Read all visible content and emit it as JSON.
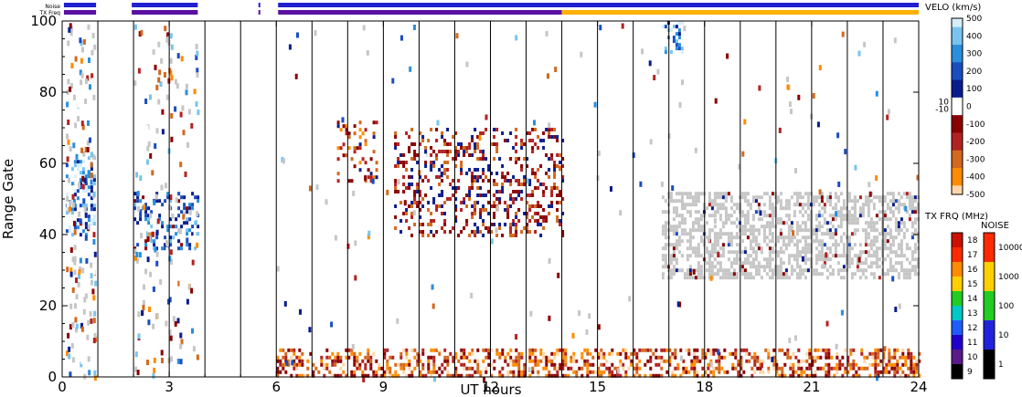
{
  "chart_data": {
    "type": "heatmap",
    "xlabel": "UT hours",
    "ylabel": "Range Gate",
    "xlim": [
      0,
      24
    ],
    "ylim": [
      0,
      100
    ],
    "x_ticks": [
      0,
      3,
      6,
      9,
      12,
      15,
      18,
      21,
      24
    ],
    "y_ticks": [
      0,
      20,
      40,
      60,
      80,
      100
    ],
    "scan_boundaries_hours": [
      1,
      2,
      3,
      4,
      5,
      6,
      7,
      8,
      9,
      10,
      11,
      12,
      13,
      14,
      15,
      16,
      17,
      18,
      19,
      20,
      21,
      22,
      23
    ],
    "top_bars": {
      "noise_label": "Noise",
      "txfreq_label": "TX Freq",
      "noise_segments_hours": [
        [
          0.05,
          0.95
        ],
        [
          1.95,
          3.8
        ],
        [
          5.5,
          5.55
        ],
        [
          6.05,
          24
        ]
      ],
      "txfreq_segments": [
        {
          "start": 0.05,
          "end": 0.95,
          "freq_mhz": 10
        },
        {
          "start": 1.95,
          "end": 3.8,
          "freq_mhz": 10
        },
        {
          "start": 5.5,
          "end": 5.55,
          "freq_mhz": 10
        },
        {
          "start": 6.05,
          "end": 14.0,
          "freq_mhz": 10
        },
        {
          "start": 14.0,
          "end": 24.0,
          "freq_mhz": 15
        }
      ]
    },
    "regions": [
      {
        "kind": "ground_scatter_band",
        "x": [
          16.8,
          24
        ],
        "y": [
          28,
          52
        ],
        "value": "ground scatter"
      },
      {
        "kind": "positive_velocity_patch",
        "x": [
          0.1,
          0.9
        ],
        "y": [
          40,
          62
        ],
        "velocity_ms": 300
      },
      {
        "kind": "positive_velocity_patch",
        "x": [
          2.0,
          3.8
        ],
        "y": [
          36,
          52
        ],
        "velocity_ms": 150
      },
      {
        "kind": "mixed_velocity_patch",
        "x": [
          7.7,
          8.8
        ],
        "y": [
          55,
          72
        ],
        "velocity_ms": -150
      },
      {
        "kind": "mixed_velocity_patch",
        "x": [
          9.3,
          14.0
        ],
        "y": [
          40,
          70
        ],
        "velocity_ms": -100
      },
      {
        "kind": "negative_velocity_near_range",
        "x": [
          6.0,
          24
        ],
        "y": [
          0,
          8
        ],
        "velocity_ms": -250
      },
      {
        "kind": "positive_velocity_patch",
        "x": [
          16.8,
          17.4
        ],
        "y": [
          91,
          101
        ],
        "velocity_ms": 350
      }
    ],
    "colorbars": [
      {
        "title": "VELO (km/s)",
        "range": [
          -500,
          500
        ],
        "tick_labels": [
          "500",
          "400",
          "300",
          "200",
          "100",
          "0",
          "-100",
          "-200",
          "-300",
          "-400",
          "-500"
        ],
        "tick_values": [
          500,
          400,
          300,
          200,
          100,
          0,
          -100,
          -200,
          -300,
          -400,
          -500
        ],
        "inner_labels": [
          "10",
          "-10"
        ],
        "stops": [
          "#d6eefa",
          "#78c4ef",
          "#2a8fdc",
          "#1a4dc0",
          "#0a1d8c",
          "#ffffff",
          "#8b0000",
          "#b22222",
          "#d2691e",
          "#ff8c00",
          "#ffd6a8"
        ]
      },
      {
        "title": "TX FRQ (MHz)",
        "tick_labels": [
          "18",
          "17",
          "16",
          "15",
          "14",
          "13",
          "12",
          "11",
          "10",
          "9"
        ],
        "tick_values": [
          18,
          17,
          16,
          15,
          14,
          13,
          12,
          11,
          10,
          9
        ],
        "colors": [
          "#cc1100",
          "#ff2a00",
          "#ff8c00",
          "#ffd000",
          "#22cc22",
          "#00c8c8",
          "#1e5cff",
          "#2200cc",
          "#5a1a8a",
          "#000000"
        ]
      },
      {
        "title": "NOISE",
        "tick_labels": [
          "10000",
          "1000",
          "100",
          "10",
          "1"
        ],
        "tick_values": [
          10000,
          1000,
          100,
          10,
          1
        ],
        "colors": [
          "#ff2a00",
          "#ffd000",
          "#22cc22",
          "#2222dd",
          "#000000"
        ]
      }
    ],
    "colors": {
      "ground_scatter": "#c6c6c6",
      "noise_bar": "#2020d0",
      "txfreq_low": "#5a10a0",
      "txfreq_high": "#ffb000"
    }
  }
}
